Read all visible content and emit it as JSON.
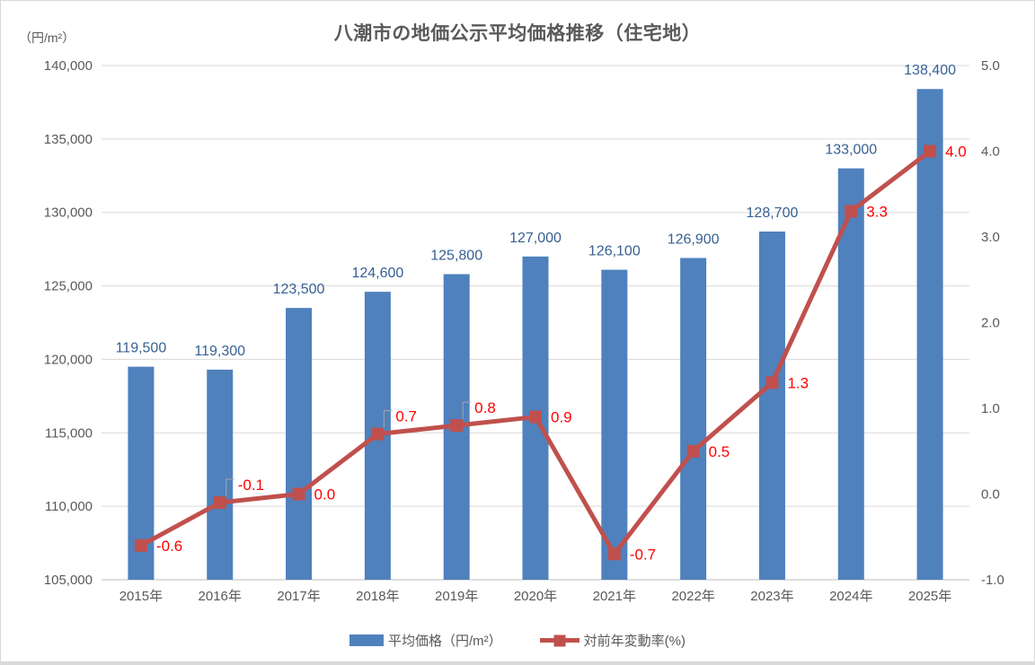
{
  "chart": {
    "title": "八潮市の地価公示平均価格推移（住宅地）",
    "unit_label": "（円/m²）",
    "legend": [
      {
        "label": "平均価格（円/m²）",
        "color": "#4F81BD",
        "type": "bar"
      },
      {
        "label": "対前年変動率(%)",
        "color": "#C0504D",
        "type": "line"
      }
    ]
  },
  "chart_data": {
    "type": "bar",
    "subtype": "bar+line combo, dual axis",
    "title": "八潮市の地価公示平均価格推移（住宅地）",
    "categories": [
      "2015年",
      "2016年",
      "2017年",
      "2018年",
      "2019年",
      "2020年",
      "2021年",
      "2022年",
      "2023年",
      "2024年",
      "2025年"
    ],
    "series": [
      {
        "name": "平均価格（円/m²）",
        "type": "bar",
        "axis": "left",
        "color": "#4F81BD",
        "label_color": "#376092",
        "values": [
          119500,
          119300,
          123500,
          124600,
          125800,
          127000,
          126100,
          126900,
          128700,
          133000,
          138400
        ],
        "labels": [
          "119,500",
          "119,300",
          "123,500",
          "124,600",
          "125,800",
          "127,000",
          "126,100",
          "126,900",
          "128,700",
          "133,000",
          "138,400"
        ]
      },
      {
        "name": "対前年変動率(%)",
        "type": "line",
        "axis": "right",
        "color": "#C0504D",
        "label_color": "#FF0000",
        "values": [
          -0.6,
          -0.1,
          0.0,
          0.7,
          0.8,
          0.9,
          -0.7,
          0.5,
          1.3,
          3.3,
          4.0
        ],
        "labels": [
          "-0.6",
          "-0.1",
          "0.0",
          "0.7",
          "0.8",
          "0.9",
          "-0.7",
          "0.5",
          "1.3",
          "3.3",
          "4.0"
        ],
        "callout_indices": [
          1,
          3,
          4
        ]
      }
    ],
    "left_axis": {
      "unit": "（円/m²）",
      "min": 105000,
      "max": 140000,
      "step": 5000,
      "tick_labels": [
        "140,000",
        "135,000",
        "130,000",
        "125,000",
        "120,000",
        "115,000",
        "110,000",
        "105,000"
      ]
    },
    "right_axis": {
      "min": -1.0,
      "max": 5.0,
      "step": 1.0,
      "tick_labels": [
        "5.0",
        "4.0",
        "3.0",
        "2.0",
        "1.0",
        "0.0",
        "-1.0"
      ]
    },
    "grid": true,
    "legend_position": "bottom",
    "colors": {
      "gridline": "#D9D9D9",
      "axis_line": "#BFBFBF",
      "axis_text": "#595959",
      "leader_line": "#A6A6A6"
    }
  }
}
